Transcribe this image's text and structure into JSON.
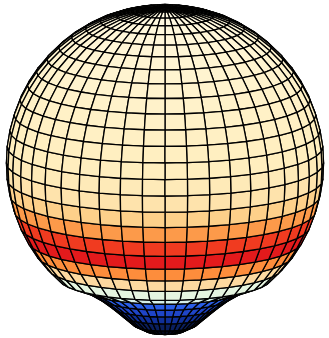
{
  "chart_data": {
    "type": "surface",
    "tick_labels": false,
    "rings": {
      "z": [
        1,
        0.995,
        0.978,
        0.951,
        0.914,
        0.866,
        0.809,
        0.743,
        0.669,
        0.588,
        0.5,
        0.407,
        0.309,
        0.208,
        0.105,
        0,
        -0.105,
        -0.208,
        -0.309,
        -0.407,
        -0.5,
        -0.588,
        -0.669,
        -0.743,
        -0.8,
        -0.86,
        -0.92,
        -0.98,
        -1.04,
        -1.08,
        -1.1
      ],
      "r": [
        0,
        0.105,
        0.208,
        0.309,
        0.407,
        0.5,
        0.588,
        0.669,
        0.743,
        0.809,
        0.866,
        0.914,
        0.951,
        0.978,
        0.995,
        1,
        0.995,
        0.978,
        0.951,
        0.914,
        0.866,
        0.809,
        0.743,
        0.669,
        0.52,
        0.42,
        0.34,
        0.27,
        0.2,
        0.12,
        0
      ]
    },
    "colors": [
      "#fffbe6",
      "#fffae3",
      "#fff9e0",
      "#fff8dc",
      "#fff7d9",
      "#fff6d6",
      "#fff5d3",
      "#fff4d0",
      "#fff3cd",
      "#fff2ca",
      "#fff1c7",
      "#fff0c4",
      "#ffefc1",
      "#ffeebe",
      "#feeab8",
      "#fee3ac",
      "#fdd08a",
      "#fc9a4a",
      "#f03b20",
      "#e31a1c",
      "#fd8d3c",
      "#fdd9a0",
      "#e5f5e0",
      "#d6efe8",
      "#2a5ee8",
      "#1f45c8",
      "#10309a",
      "#0a1f5e",
      "#050a20",
      "#000000"
    ]
  }
}
